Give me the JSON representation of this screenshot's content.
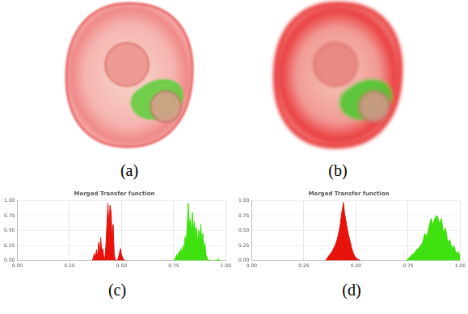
{
  "panels": {
    "images": [
      {
        "caption": "(a)"
      },
      {
        "caption": "(b)"
      }
    ]
  },
  "chart_data": [
    {
      "type": "area",
      "title": "Merged Transfer function",
      "caption": "(c)",
      "xlim": [
        0,
        1
      ],
      "xticks": [
        {
          "value": 0,
          "label": "0.00"
        },
        0.25,
        {
          "value": 0.5,
          "label": "0.50"
        },
        0.75,
        {
          "value": 1,
          "label": "1.00"
        }
      ],
      "ylim": [
        0,
        1
      ],
      "yticks": [
        {
          "value": 0,
          "label": "0.00"
        },
        0.25,
        {
          "value": 0.5,
          "label": "0.50"
        },
        0.75,
        {
          "value": 1,
          "label": "1.00"
        }
      ],
      "grid": true,
      "series": [
        {
          "color": "#e8120c",
          "x": [
            0.36,
            0.365,
            0.37,
            0.375,
            0.38,
            0.385,
            0.39,
            0.395,
            0.4,
            0.405,
            0.41,
            0.415,
            0.42,
            0.425,
            0.43,
            0.435,
            0.44,
            0.445,
            0.45,
            0.455,
            0.46,
            0.465,
            0.47,
            0.475,
            0.48,
            0.485,
            0.49,
            0.495,
            0.5,
            0.505,
            0.51,
            0.515,
            0.52
          ],
          "values": [
            0,
            0.05,
            0.12,
            0.02,
            0.18,
            0.05,
            0.3,
            0.1,
            0.38,
            0.15,
            0.2,
            0.05,
            0.02,
            0.25,
            0.6,
            0.95,
            0.55,
            0.92,
            0.8,
            0.35,
            0.6,
            0.1,
            0.02,
            0,
            0,
            0.05,
            0.12,
            0.2,
            0.1,
            0.05,
            0.02,
            0,
            0
          ]
        },
        {
          "color": "#3fe00f",
          "x": [
            0.75,
            0.755,
            0.76,
            0.765,
            0.77,
            0.775,
            0.78,
            0.785,
            0.79,
            0.795,
            0.8,
            0.805,
            0.81,
            0.815,
            0.82,
            0.825,
            0.83,
            0.835,
            0.84,
            0.845,
            0.85,
            0.855,
            0.86,
            0.865,
            0.87,
            0.875,
            0.88,
            0.885,
            0.89,
            0.895,
            0.9,
            0.905,
            0.91,
            0.915,
            0.92,
            0.96,
            0.965,
            0.97
          ],
          "values": [
            0,
            0.02,
            0.05,
            0.1,
            0.08,
            0.15,
            0.12,
            0.2,
            0.1,
            0.25,
            0.18,
            0.4,
            0.3,
            0.55,
            0.95,
            0.6,
            0.7,
            0.45,
            0.8,
            0.5,
            0.65,
            0.4,
            0.55,
            0.3,
            0.5,
            0.35,
            0.6,
            0.3,
            0.45,
            0.2,
            0.3,
            0.1,
            0.05,
            0.02,
            0,
            0,
            0.03,
            0
          ]
        }
      ]
    },
    {
      "type": "area",
      "title": "Merged Transfer function",
      "caption": "(d)",
      "xlim": [
        0,
        1
      ],
      "xticks": [
        {
          "value": 0,
          "label": "0.00"
        },
        0.25,
        {
          "value": 0.5,
          "label": "0.50"
        },
        0.75,
        {
          "value": 1,
          "label": "1.00"
        }
      ],
      "ylim": [
        0,
        1
      ],
      "yticks": [
        {
          "value": 0,
          "label": "0.00"
        },
        0.25,
        {
          "value": 0.5,
          "label": "0.50"
        },
        0.75,
        {
          "value": 1,
          "label": "1.00"
        }
      ],
      "grid": true,
      "series": [
        {
          "color": "#e8120c",
          "x": [
            0.355,
            0.36,
            0.365,
            0.37,
            0.375,
            0.38,
            0.385,
            0.39,
            0.395,
            0.4,
            0.405,
            0.41,
            0.415,
            0.42,
            0.425,
            0.43,
            0.435,
            0.44,
            0.445,
            0.45,
            0.455,
            0.46,
            0.465,
            0.47,
            0.475,
            0.48,
            0.485,
            0.49,
            0.495,
            0.5,
            0.505,
            0.51,
            0.515,
            0.52
          ],
          "values": [
            0,
            0.03,
            0.05,
            0.08,
            0.1,
            0.12,
            0.15,
            0.18,
            0.22,
            0.25,
            0.3,
            0.35,
            0.42,
            0.5,
            0.6,
            0.75,
            0.85,
            0.97,
            0.8,
            0.7,
            0.6,
            0.5,
            0.42,
            0.35,
            0.28,
            0.2,
            0.15,
            0.1,
            0.07,
            0.05,
            0.03,
            0.02,
            0.01,
            0
          ]
        },
        {
          "color": "#3fe00f",
          "x": [
            0.74,
            0.75,
            0.76,
            0.77,
            0.78,
            0.79,
            0.8,
            0.81,
            0.82,
            0.83,
            0.84,
            0.85,
            0.86,
            0.87,
            0.88,
            0.89,
            0.9,
            0.91,
            0.92,
            0.93,
            0.94,
            0.95,
            0.96,
            0.97,
            0.98,
            0.99,
            1
          ],
          "values": [
            0,
            0.03,
            0.06,
            0.1,
            0.12,
            0.18,
            0.2,
            0.25,
            0.3,
            0.45,
            0.4,
            0.55,
            0.7,
            0.6,
            0.72,
            0.75,
            0.62,
            0.7,
            0.45,
            0.55,
            0.3,
            0.35,
            0.2,
            0.25,
            0.12,
            0.15,
            0.08
          ]
        }
      ]
    }
  ]
}
